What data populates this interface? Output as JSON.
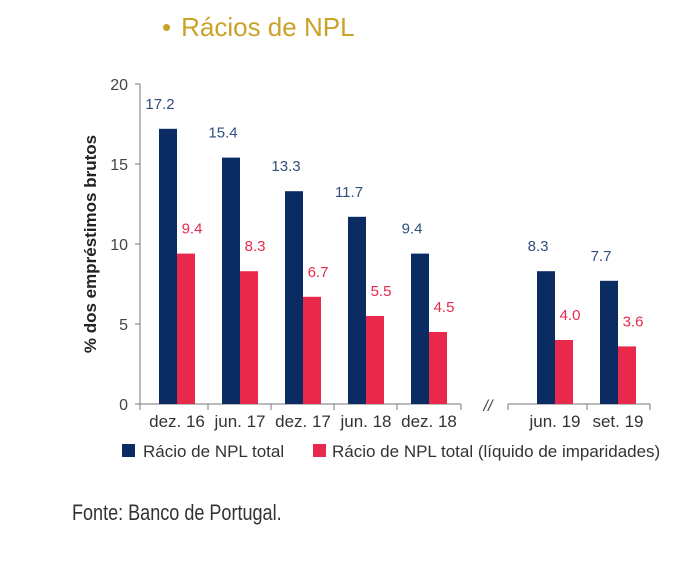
{
  "header": {
    "bullet": "•",
    "title": "Rácios de NPL"
  },
  "source": "Fonte: Banco de Portugal.",
  "colors": {
    "title": "#c9a227",
    "series_1": "#0b2c63",
    "series_2": "#e8294c"
  },
  "chart_data": {
    "type": "bar",
    "ylabel": "% dos empréstimos brutos",
    "ylim": [
      0,
      20
    ],
    "yticks": [
      "0",
      "5",
      "10",
      "15",
      "20"
    ],
    "categories": [
      "dez. 16",
      "jun. 17",
      "dez. 17",
      "jun. 18",
      "dez. 18",
      "jun. 19",
      "set. 19"
    ],
    "axis_break": {
      "after_category": "dez. 18",
      "symbol": "//"
    },
    "series": [
      {
        "name": "Rácio de NPL total",
        "values": [
          17.2,
          15.4,
          13.3,
          11.7,
          9.4,
          8.3,
          7.7
        ],
        "labels": [
          "17.2",
          "15.4",
          "13.3",
          "11.7",
          "9.4",
          "8.3",
          "7.7"
        ]
      },
      {
        "name": "Rácio de NPL total (líquido de imparidades)",
        "values": [
          9.4,
          8.3,
          6.7,
          5.5,
          4.5,
          4.0,
          3.6
        ],
        "labels": [
          "9.4",
          "8.3",
          "6.7",
          "5.5",
          "4.5",
          "4.0",
          "3.6"
        ]
      }
    ],
    "legend": "bottom",
    "grid": false
  }
}
